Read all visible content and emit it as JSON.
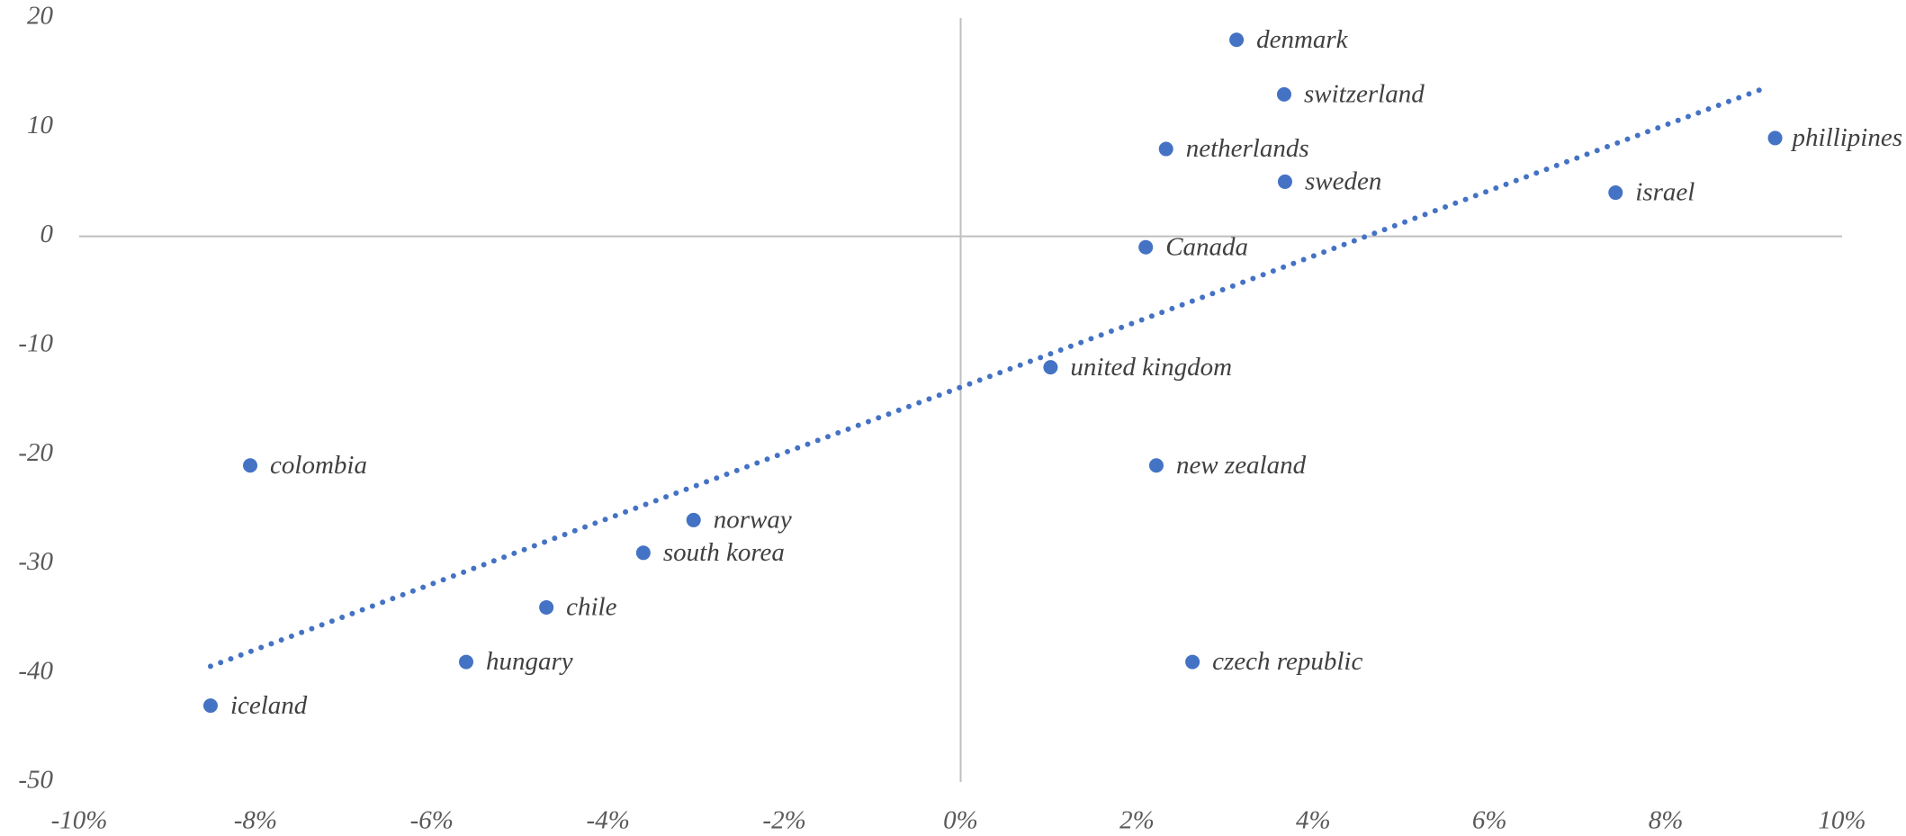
{
  "chart_data": {
    "type": "scatter",
    "series": [
      {
        "color": "#4472c4",
        "labels": [
          "denmark",
          "switzerland",
          "netherlands",
          "sweden",
          "phillipines",
          "israel",
          "Canada",
          "united kingdom",
          "new zealand",
          "czech republic",
          "colombia",
          "norway",
          "south korea",
          "chile",
          "hungary",
          "iceland"
        ],
        "x": [
          3.13,
          3.67,
          2.33,
          3.68,
          9.24,
          7.43,
          2.1,
          1.02,
          2.22,
          2.63,
          -8.06,
          -3.03,
          -3.6,
          -4.7,
          -5.61,
          -8.51
        ],
        "values": [
          18,
          13,
          8,
          5,
          9,
          4,
          -1,
          -12,
          -21,
          -39,
          -21,
          -26,
          -29,
          -34,
          -39,
          -43
        ]
      }
    ],
    "trendline": {
      "color": "#4472c4",
      "x": [
        -8.51,
        9.13
      ],
      "values": [
        -39.4,
        13.6
      ]
    },
    "xlim": [
      -10,
      10
    ],
    "xticks": [
      {
        "value": -10,
        "label": "-10%"
      },
      {
        "value": -8,
        "label": "-8%"
      },
      {
        "value": -6,
        "label": "-6%"
      },
      {
        "value": -4,
        "label": "-4%"
      },
      {
        "value": -2,
        "label": "-2%"
      },
      {
        "value": 0,
        "label": "0%"
      },
      {
        "value": 2,
        "label": "2%"
      },
      {
        "value": 4,
        "label": "4%"
      },
      {
        "value": 6,
        "label": "6%"
      },
      {
        "value": 8,
        "label": "8%"
      },
      {
        "value": 10,
        "label": "10%"
      }
    ],
    "ylim": [
      -50,
      20
    ],
    "yticks": [
      -50,
      -40,
      -30,
      -20,
      -10,
      0,
      10,
      20
    ],
    "grid": false
  }
}
